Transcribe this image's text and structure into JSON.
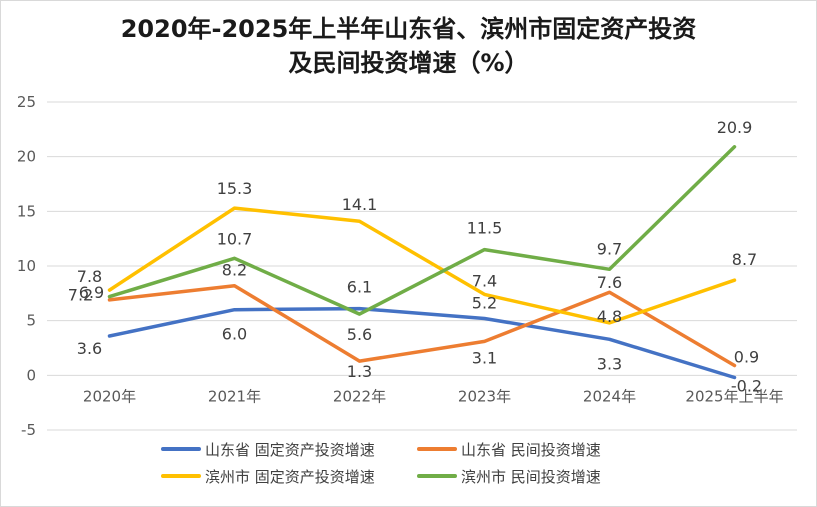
{
  "title_line1": "2020年-2025年上半年山东省、滨州市固定资产投资",
  "title_line2": "及民间投资增速（%）",
  "chart_data": {
    "type": "line",
    "title": "2020年-2025年上半年山东省、滨州市固定资产投资及民间投资增速（%）",
    "categories": [
      "2020年",
      "2021年",
      "2022年",
      "2023年",
      "2024年",
      "2025年上半年"
    ],
    "ylim": [
      -5,
      25
    ],
    "yticks": [
      -5,
      0,
      5,
      10,
      15,
      20,
      25
    ],
    "grid": true,
    "legend_position": "bottom",
    "series": [
      {
        "name": "山东省 固定资产投资增速",
        "color": "#4472C4",
        "values": [
          3.6,
          6.0,
          6.1,
          5.2,
          3.3,
          -0.2
        ],
        "labels": [
          "3.6",
          "6.0",
          "6.1",
          "5.2",
          "3.3",
          "-0.2"
        ]
      },
      {
        "name": "山东省 民间投资增速",
        "color": "#ED7D31",
        "values": [
          6.9,
          8.2,
          1.3,
          3.1,
          7.6,
          0.9
        ],
        "labels": [
          "6.9",
          "8.2",
          "1.3",
          "3.1",
          "7.6",
          "0.9"
        ]
      },
      {
        "name": "滨州市 固定资产投资增速",
        "color": "#FFC000",
        "values": [
          7.8,
          15.3,
          14.1,
          7.4,
          4.8,
          8.7
        ],
        "labels": [
          "7.8",
          "15.3",
          "14.1",
          "7.4",
          "4.8",
          "8.7"
        ]
      },
      {
        "name": "滨州市 民间投资增速",
        "color": "#70AD47",
        "values": [
          7.2,
          10.7,
          5.6,
          11.5,
          9.7,
          20.9
        ],
        "labels": [
          "7.2",
          "10.7",
          "5.6",
          "11.5",
          "9.7",
          "20.9"
        ]
      }
    ]
  }
}
